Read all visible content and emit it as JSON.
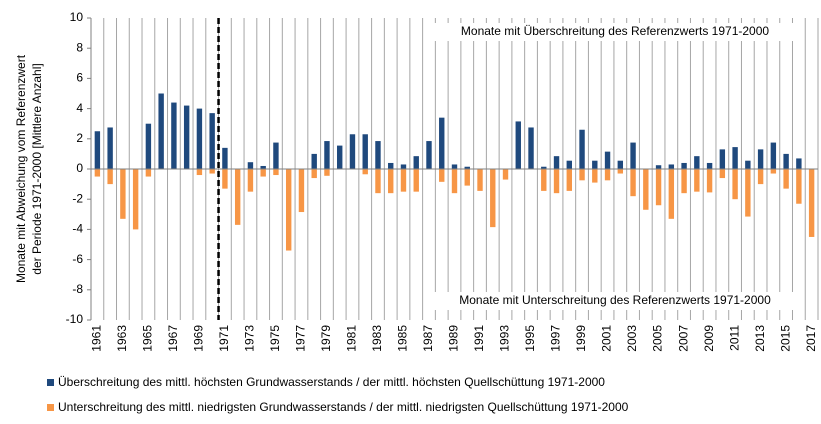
{
  "chart_data": {
    "type": "bar",
    "y_axis_label": [
      "Monate mit Abweichung vom Referenzwert",
      "der Periode 1971-2000 [Mittlere Anzahl]"
    ],
    "annotations": [
      "Monate mit Überschreitung des Referenzwerts 1971-2000",
      "Monate mit Unterschreitung des Referenzwerts 1971-2000"
    ],
    "categories": [
      "1961",
      null,
      "1963",
      null,
      "1965",
      null,
      "1967",
      null,
      "1969",
      null,
      "1971",
      null,
      "1973",
      null,
      "1975",
      null,
      "1977",
      null,
      "1979",
      null,
      "1981",
      null,
      "1983",
      null,
      "1985",
      null,
      "1987",
      null,
      "1989",
      null,
      "1991",
      null,
      "1993",
      null,
      "1995",
      null,
      "1997",
      null,
      "1999",
      null,
      "2001",
      null,
      "2003",
      null,
      "2005",
      null,
      "2007",
      null,
      "2009",
      null,
      "2011",
      null,
      "2013",
      null,
      "2015",
      null,
      "2017"
    ],
    "series": [
      {
        "name": "Überschreitung des mittl. höchsten Grundwasserstands / der mittl. höchsten Quellschüttung 1971-2000",
        "color": "#1f497d",
        "values": [
          2.5,
          2.75,
          0,
          0,
          3,
          5,
          4.4,
          4.2,
          4,
          3.7,
          1.4,
          0,
          0.45,
          0.2,
          1.75,
          0,
          0,
          1,
          1.85,
          1.55,
          2.3,
          2.3,
          1.85,
          0.4,
          0.3,
          0.85,
          1.85,
          3.4,
          0.3,
          0.15,
          0,
          0,
          0,
          3.15,
          2.75,
          0.15,
          0.85,
          0.55,
          2.6,
          0.55,
          1.15,
          0.55,
          1.75,
          0,
          0.25,
          0.3,
          0.4,
          0.85,
          0.4,
          1.3,
          1.45,
          0.55,
          1.3,
          1.75,
          1.0,
          0.7,
          0
        ]
      },
      {
        "name": "Unterschreitung des mittl. niedrigsten Grundwasserstands / der mittl. niedrigsten Quellschüttung 1971-2000",
        "color": "#f79646",
        "values": [
          -0.5,
          -1,
          -3.3,
          -4,
          -0.5,
          0,
          0,
          0,
          -0.4,
          -0.3,
          -1.3,
          -3.7,
          -1.5,
          -0.5,
          -0.4,
          -5.4,
          -2.85,
          -0.6,
          -0.45,
          0,
          0,
          -0.35,
          -1.6,
          -1.6,
          -1.5,
          -1.5,
          0,
          -0.85,
          -1.6,
          -1.1,
          -1.45,
          -3.85,
          -0.7,
          0,
          0,
          -1.45,
          -1.6,
          -1.45,
          -0.75,
          -0.9,
          -0.75,
          -0.3,
          -1.8,
          -2.7,
          -2.4,
          -3.3,
          -1.6,
          -1.5,
          -1.55,
          -0.6,
          -2.0,
          -3.15,
          -1.0,
          -0.3,
          -1.3,
          -2.3,
          -4.5
        ]
      }
    ],
    "ylim": [
      -10,
      10
    ],
    "yticks": [
      -10,
      -8,
      -6,
      -4,
      -2,
      0,
      2,
      4,
      6,
      8,
      10
    ],
    "legend": "bottom"
  }
}
